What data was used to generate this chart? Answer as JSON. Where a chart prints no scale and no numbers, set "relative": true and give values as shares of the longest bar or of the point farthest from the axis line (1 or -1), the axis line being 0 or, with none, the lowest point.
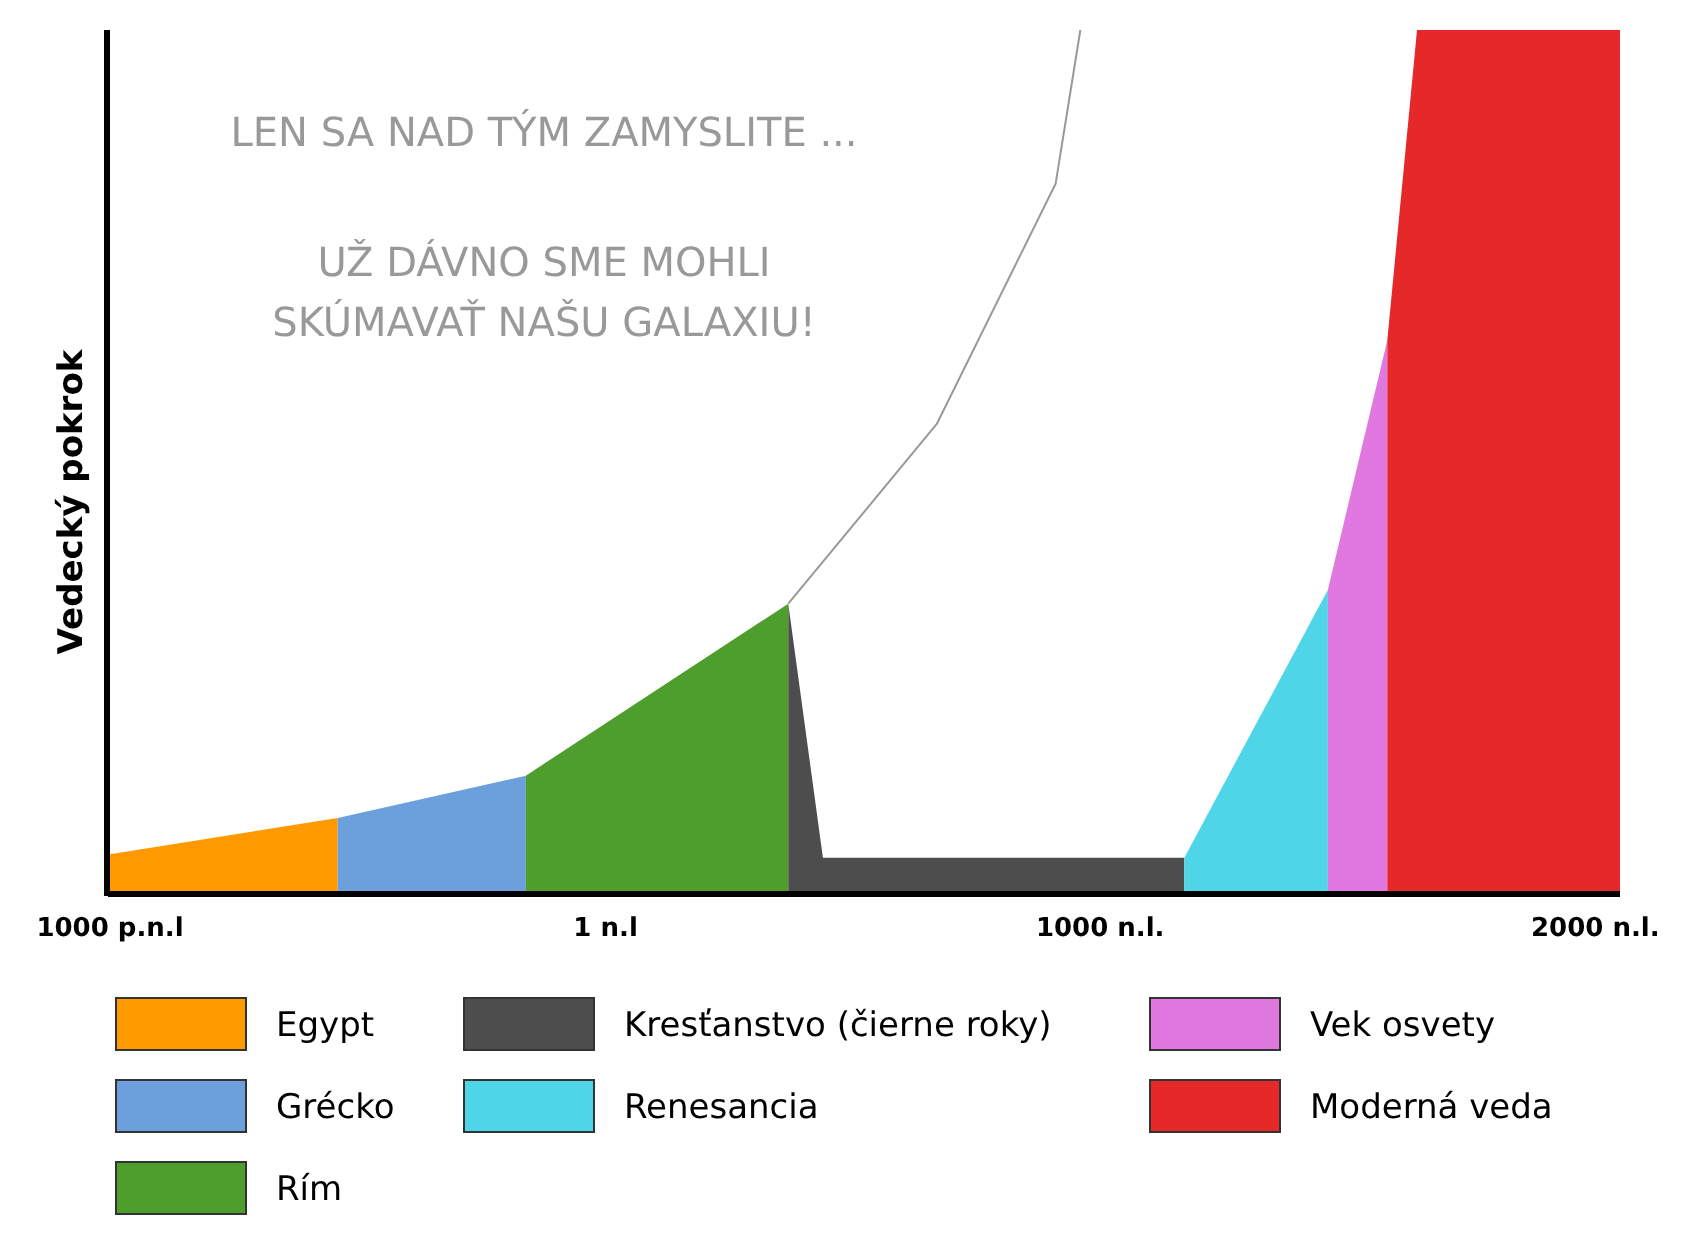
{
  "chart_data": {
    "type": "area",
    "relative": true,
    "ylabel": "Vedecký pokrok",
    "xlim": [
      -1000,
      2050
    ],
    "xticks": [
      {
        "value": -1000,
        "label": "1000 p.n.l"
      },
      {
        "value": 1,
        "label": "1 n.l"
      },
      {
        "value": 1000,
        "label": "1000 n.l."
      },
      {
        "value": 2000,
        "label": "2000 n.l."
      }
    ],
    "series": [
      {
        "name": "Egypt",
        "color": "#ff9900",
        "x": [
          -1000,
          -540
        ],
        "values": [
          0.046,
          0.088
        ]
      },
      {
        "name": "Grécko",
        "color": "#6ca0dc",
        "x": [
          -540,
          -160
        ],
        "values": [
          0.088,
          0.137
        ]
      },
      {
        "name": "Rím",
        "color": "#4e9e2e",
        "x": [
          -160,
          370
        ],
        "values": [
          0.137,
          0.336
        ]
      },
      {
        "name": "Kresťanstvo (čierne roky)",
        "color": "#4d4d4d",
        "x": [
          370,
          440,
          1170
        ],
        "values": [
          0.336,
          0.042,
          0.042
        ]
      },
      {
        "name": "Renesancia",
        "color": "#4fd5e8",
        "x": [
          1170,
          1460
        ],
        "values": [
          0.042,
          0.352
        ]
      },
      {
        "name": "Vek osvety",
        "color": "#e078e0",
        "x": [
          1460,
          1580
        ],
        "values": [
          0.352,
          0.641
        ]
      },
      {
        "name": "Moderná veda",
        "color": "#e52828",
        "x": [
          1580,
          1640,
          2050
        ],
        "values": [
          0.641,
          1,
          1
        ]
      },
      {
        "type": "line",
        "color": "#999999",
        "x": [
          370,
          670,
          910,
          960
        ],
        "values": [
          0.336,
          0.544,
          0.822,
          1
        ]
      }
    ],
    "annotations": [
      "LEN SA NAD TÝM ZAMYSLITE ...",
      "UŽ DÁVNO SME MOHLI",
      "SKÚMAVAŤ NAŠU GALAXIU!"
    ],
    "legend": "bottom",
    "grid": false,
    "marker": "none",
    "line_style": "solid"
  }
}
